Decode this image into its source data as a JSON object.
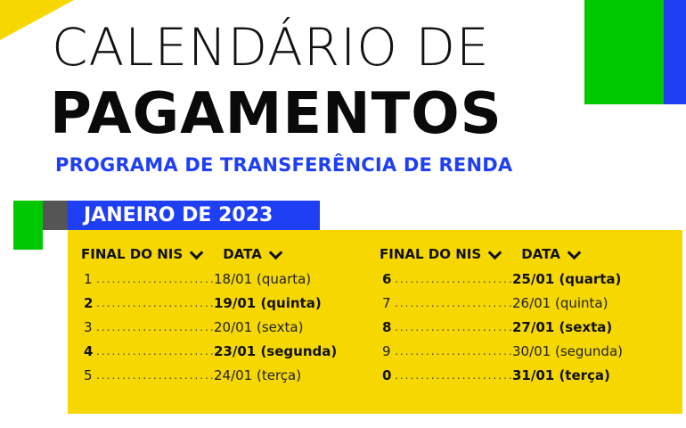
{
  "colors": {
    "yellow": "#f6d800",
    "green": "#00c800",
    "blue": "#1f3ff5",
    "grey": "#555555",
    "text_dark": "#111111"
  },
  "header": {
    "title_line1": "CALENDÁRIO DE",
    "title_line2": "PAGAMENTOS",
    "subtitle": "PROGRAMA DE TRANSFERÊNCIA DE RENDA"
  },
  "banner": {
    "label": "JANEIRO DE 2023"
  },
  "table": {
    "columns": [
      {
        "label": "FINAL DO NIS",
        "icon": "chevron-down-icon"
      },
      {
        "label": "DATA",
        "icon": "chevron-down-icon"
      }
    ],
    "dots": "....................................",
    "left": [
      {
        "nis": "1",
        "date": "18/01 (quarta)",
        "bold": false
      },
      {
        "nis": "2",
        "date": "19/01 (quinta)",
        "bold": true
      },
      {
        "nis": "3",
        "date": "20/01 (sexta)",
        "bold": false
      },
      {
        "nis": "4",
        "date": "23/01 (segunda)",
        "bold": true
      },
      {
        "nis": "5",
        "date": "24/01 (terça)",
        "bold": false
      }
    ],
    "right": [
      {
        "nis": "6",
        "date": "25/01 (quarta)",
        "bold": true
      },
      {
        "nis": "7",
        "date": "26/01 (quinta)",
        "bold": false
      },
      {
        "nis": "8",
        "date": "27/01 (sexta)",
        "bold": true
      },
      {
        "nis": "9",
        "date": "30/01 (segunda)",
        "bold": false
      },
      {
        "nis": "0",
        "date": "31/01 (terça)",
        "bold": true
      }
    ]
  }
}
